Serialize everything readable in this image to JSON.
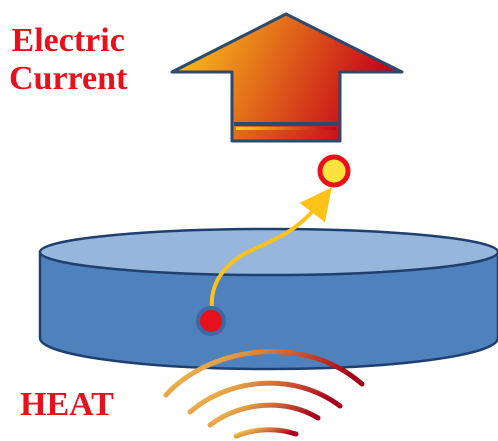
{
  "labels": {
    "current_line1": "Electric",
    "current_line2": "Current",
    "heat": "HEAT"
  },
  "colors": {
    "label_text": "#e8101a",
    "disk_top": "#97b6dc",
    "disk_side": "#4f81bd",
    "disk_outline": "#1f3f6e",
    "arrow_gradient_start": "#ffd21a",
    "arrow_gradient_end": "#c4001a",
    "arrow_outline": "#2b4a70",
    "electron_fill": "#e8101a",
    "emitted_electron_fill": "#ffe23a",
    "emitted_electron_outline": "#e8101a",
    "path_color": "#ffc21a",
    "heat_wave_start": "#ffe85a",
    "heat_wave_end": "#a8001a"
  },
  "icons": {
    "arrow": "upward-arrow-icon",
    "electron": "electron-dot-icon",
    "heat": "heat-waves-icon"
  }
}
